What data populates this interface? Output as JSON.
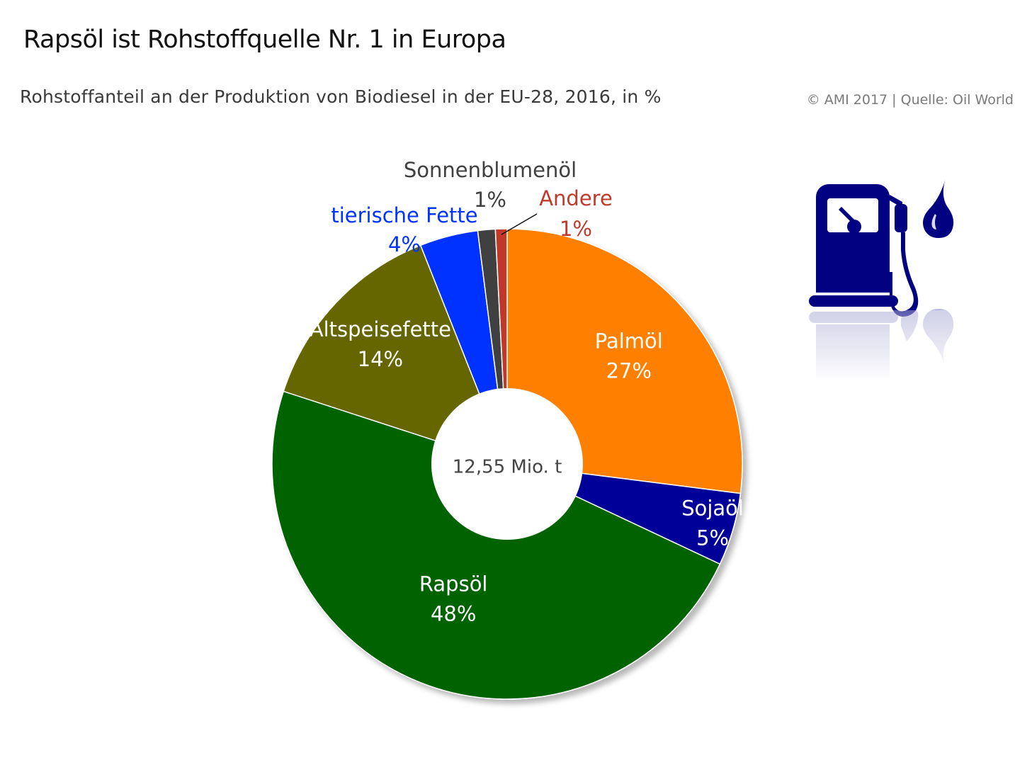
{
  "header": {
    "title": "Rapsöl ist Rohstoffquelle Nr. 1 in Europa",
    "subtitle": "Rohstoffanteil an der Produktion von Biodiesel in der EU-28, 2016, in %",
    "source": "© AMI 2017 | Quelle: Oil World"
  },
  "icon": {
    "name": "fuel-pump-icon",
    "color": "#000080"
  },
  "chart_data": {
    "type": "pie",
    "variant": "donut",
    "center_label": "12,55 Mio. t",
    "legend": "none",
    "slices": [
      {
        "name": "Palmöl",
        "value": 27,
        "label": "27%",
        "color": "#ff7f00",
        "label_color": "#ffffff"
      },
      {
        "name": "Sojaöl",
        "value": 5,
        "label": "5%",
        "color": "#000099",
        "label_color": "#ffffff"
      },
      {
        "name": "Rapsöl",
        "value": 48,
        "label": "48%",
        "color": "#006400",
        "label_color": "#ffffff"
      },
      {
        "name": "Altspeisefette",
        "value": 14,
        "label": "14%",
        "color": "#666600",
        "label_color": "#ffffff"
      },
      {
        "name": "tierische Fette",
        "value": 4,
        "label": "4%",
        "color": "#0033ff",
        "label_color": "#0033ff"
      },
      {
        "name": "Sonnenblumenöl",
        "value": 1.2,
        "label": "1%",
        "color": "#404040",
        "label_color": "#404040"
      },
      {
        "name": "Andere",
        "value": 0.8,
        "label": "1%",
        "color": "#c0392b",
        "label_color": "#c0392b"
      }
    ]
  }
}
